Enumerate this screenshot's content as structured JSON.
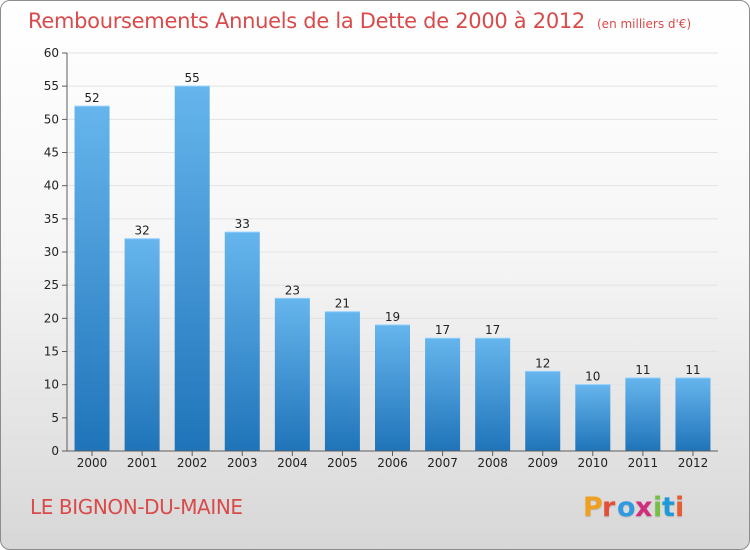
{
  "header": {
    "title": "Remboursements Annuels de la Dette de 2000 à 2012",
    "unit": "(en milliers d'€)"
  },
  "footer": {
    "commune": "LE BIGNON-DU-MAINE",
    "brand": {
      "letters": [
        "P",
        "r",
        "o",
        "x",
        "i",
        "t",
        "i"
      ],
      "colors": [
        "#f0a020",
        "#e44f3a",
        "#2f9ae0",
        "#d12d7c",
        "#77c043",
        "#1d9ad7",
        "#e95d33"
      ]
    }
  },
  "colors": {
    "bar_top": "#66b5ed",
    "bar_bottom": "#1f74b9",
    "axis": "#5d5d5d",
    "grid": "#e3e3e3",
    "title": "#d94a4a"
  },
  "chart_data": {
    "type": "bar",
    "categories": [
      "2000",
      "2001",
      "2002",
      "2003",
      "2004",
      "2005",
      "2006",
      "2007",
      "2008",
      "2009",
      "2010",
      "2011",
      "2012"
    ],
    "values": [
      52,
      32,
      55,
      33,
      23,
      21,
      19,
      17,
      17,
      12,
      10,
      11,
      11
    ],
    "ylim": [
      0,
      60
    ],
    "yticks": [
      0,
      5,
      10,
      15,
      20,
      25,
      30,
      35,
      40,
      45,
      50,
      55,
      60
    ],
    "grid": true
  }
}
